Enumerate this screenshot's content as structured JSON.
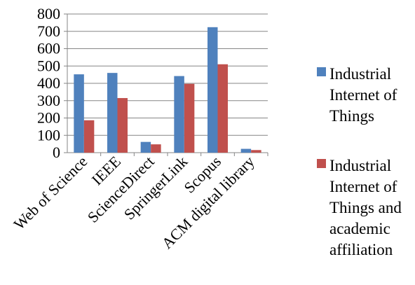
{
  "chart_data": {
    "type": "bar",
    "categories": [
      "Web of Science",
      "IEEE",
      "ScienceDirect",
      "SpringerLink",
      "Scopus",
      "ACM digital library"
    ],
    "series": [
      {
        "name": "Industrial Internet of Things",
        "color": "#4F81BD",
        "values": [
          452,
          460,
          62,
          442,
          724,
          22
        ]
      },
      {
        "name": "Industrial Internet of Things and academic affiliation",
        "color": "#C0504D",
        "values": [
          187,
          315,
          48,
          397,
          510,
          15
        ]
      }
    ],
    "yticks": [
      "0",
      "100",
      "200",
      "300",
      "400",
      "500",
      "600",
      "700",
      "800"
    ],
    "ylim": [
      0,
      800
    ],
    "grid": true,
    "legend_position": "right",
    "title": "",
    "xlabel": "",
    "ylabel": ""
  }
}
